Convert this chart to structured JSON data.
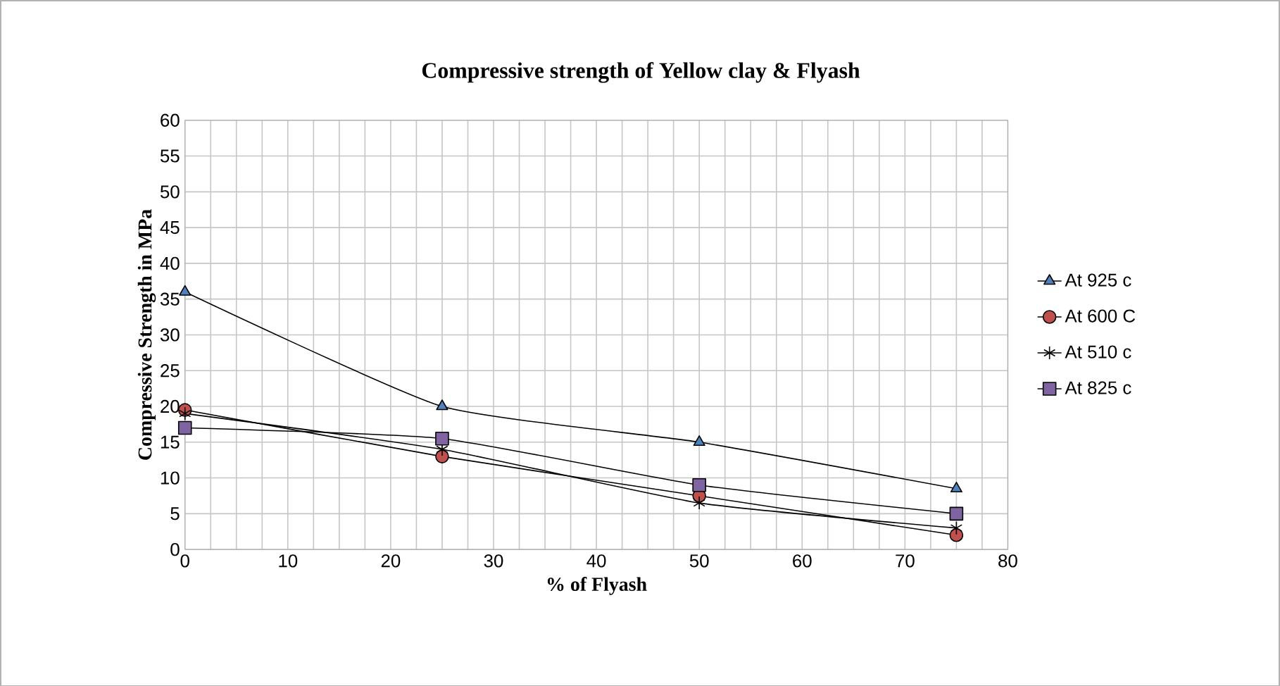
{
  "chart_data": {
    "type": "line",
    "title": "Compressive strength of Yellow clay & Flyash",
    "xlabel": "% of Flyash",
    "ylabel": "Compressive Strength in MPa",
    "x": [
      0,
      25,
      50,
      75
    ],
    "series": [
      {
        "name": "At 925 c",
        "color": "#4f81bd",
        "marker": "triangle",
        "values": [
          36,
          20,
          15,
          8.5
        ]
      },
      {
        "name": "At 600 C",
        "color": "#c0504d",
        "marker": "circle",
        "values": [
          19.5,
          13,
          7.5,
          2
        ]
      },
      {
        "name": "At 510 c",
        "color": "#000000",
        "marker": "cross",
        "values": [
          19,
          14,
          6.5,
          3
        ]
      },
      {
        "name": "At 825 c",
        "color": "#8064a2",
        "marker": "square",
        "values": [
          17,
          15.5,
          9,
          5
        ]
      }
    ],
    "xlim": [
      0,
      80
    ],
    "xticks": [
      0,
      10,
      20,
      30,
      40,
      50,
      60,
      70,
      80
    ],
    "ylim": [
      0,
      60
    ],
    "yticks": [
      0,
      5,
      10,
      15,
      20,
      25,
      30,
      35,
      40,
      45,
      50,
      55,
      60
    ],
    "grid": true,
    "legend": "right"
  }
}
